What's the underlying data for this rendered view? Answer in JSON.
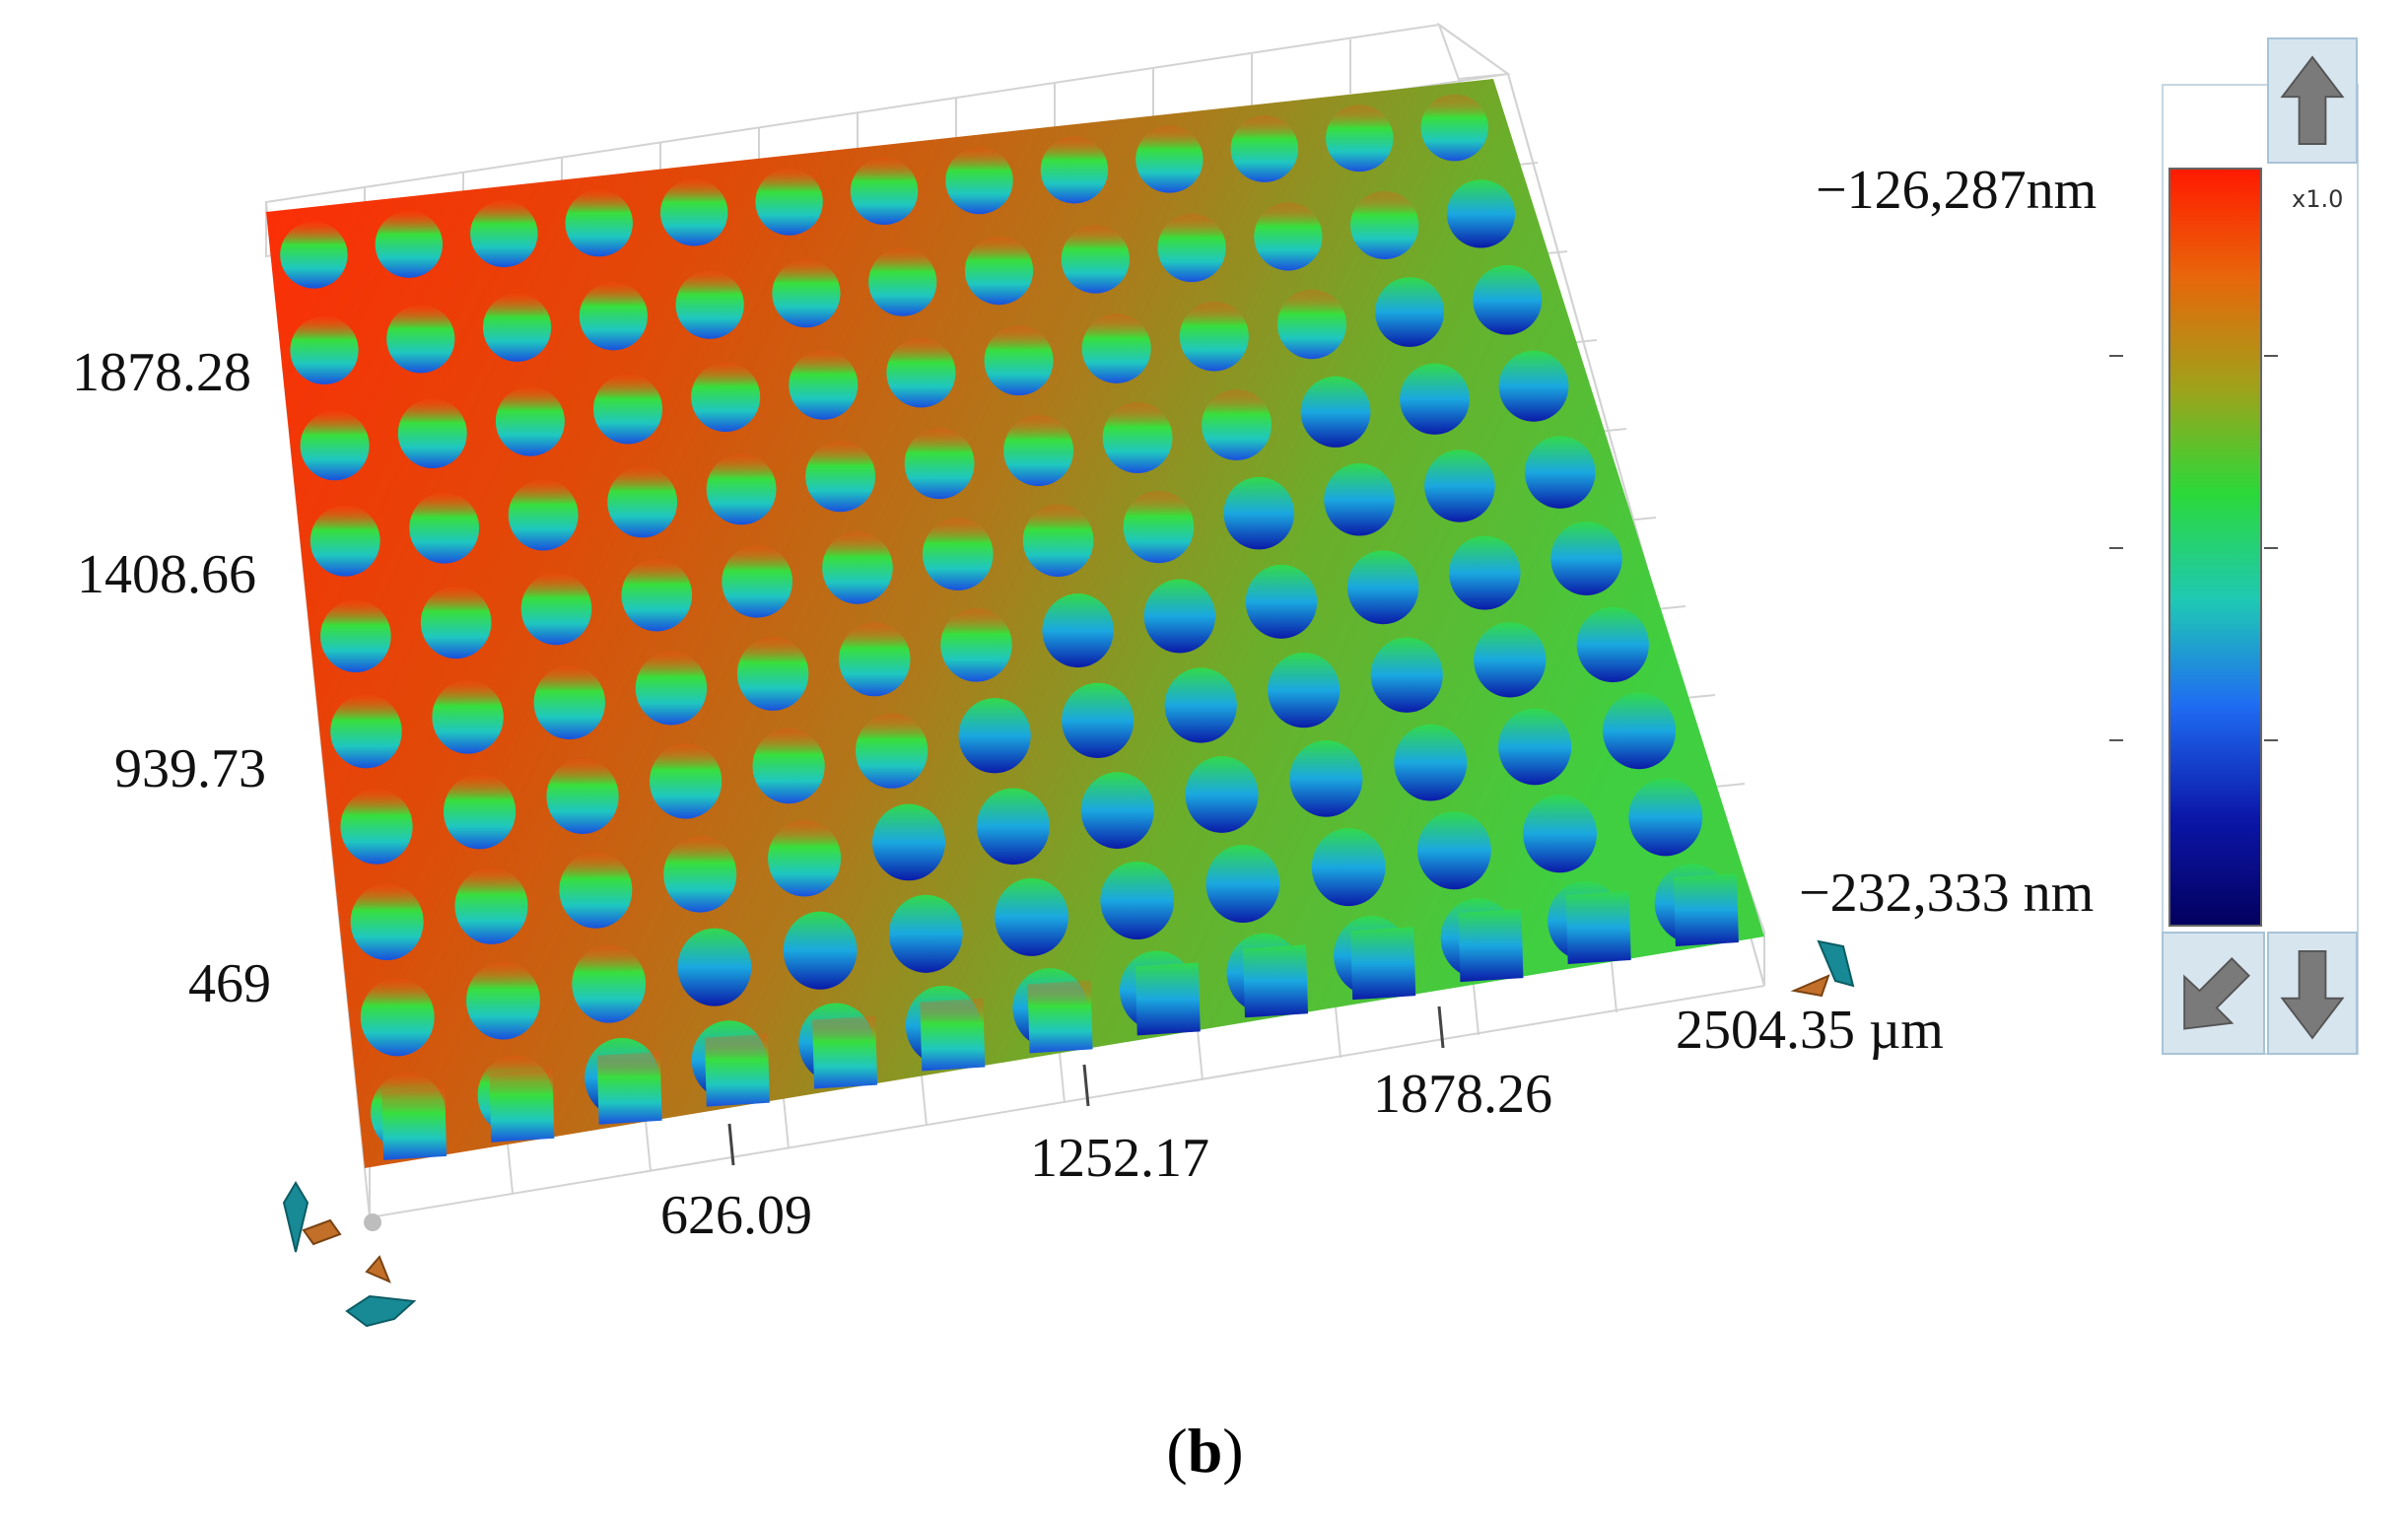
{
  "plot": {
    "x_axis": {
      "ticks": [
        "626.09",
        "1252.17",
        "1878.26"
      ],
      "end_label": "2504.35 µm"
    },
    "y_axis": {
      "ticks": [
        "1878.28",
        "1408.66",
        "939.73",
        "469"
      ]
    }
  },
  "color_scale": {
    "max_label": "−126,287nm",
    "min_label": "−232,333 nm",
    "zoom_label": "x1.0",
    "colors": [
      "#ff1a00",
      "#e9650a",
      "#9fa21a",
      "#2bd93a",
      "#1fc9b4",
      "#1f6cf2",
      "#0b16a8",
      "#04005f"
    ]
  },
  "controls": {
    "up_icon": "arrow-up-icon",
    "down_icon": "arrow-down-icon",
    "reset_icon": "arrow-diagonal-icon",
    "rotate_icon": "rotate-handle-icon"
  },
  "caption": {
    "open": "(",
    "letter": "b",
    "close": ")"
  }
}
